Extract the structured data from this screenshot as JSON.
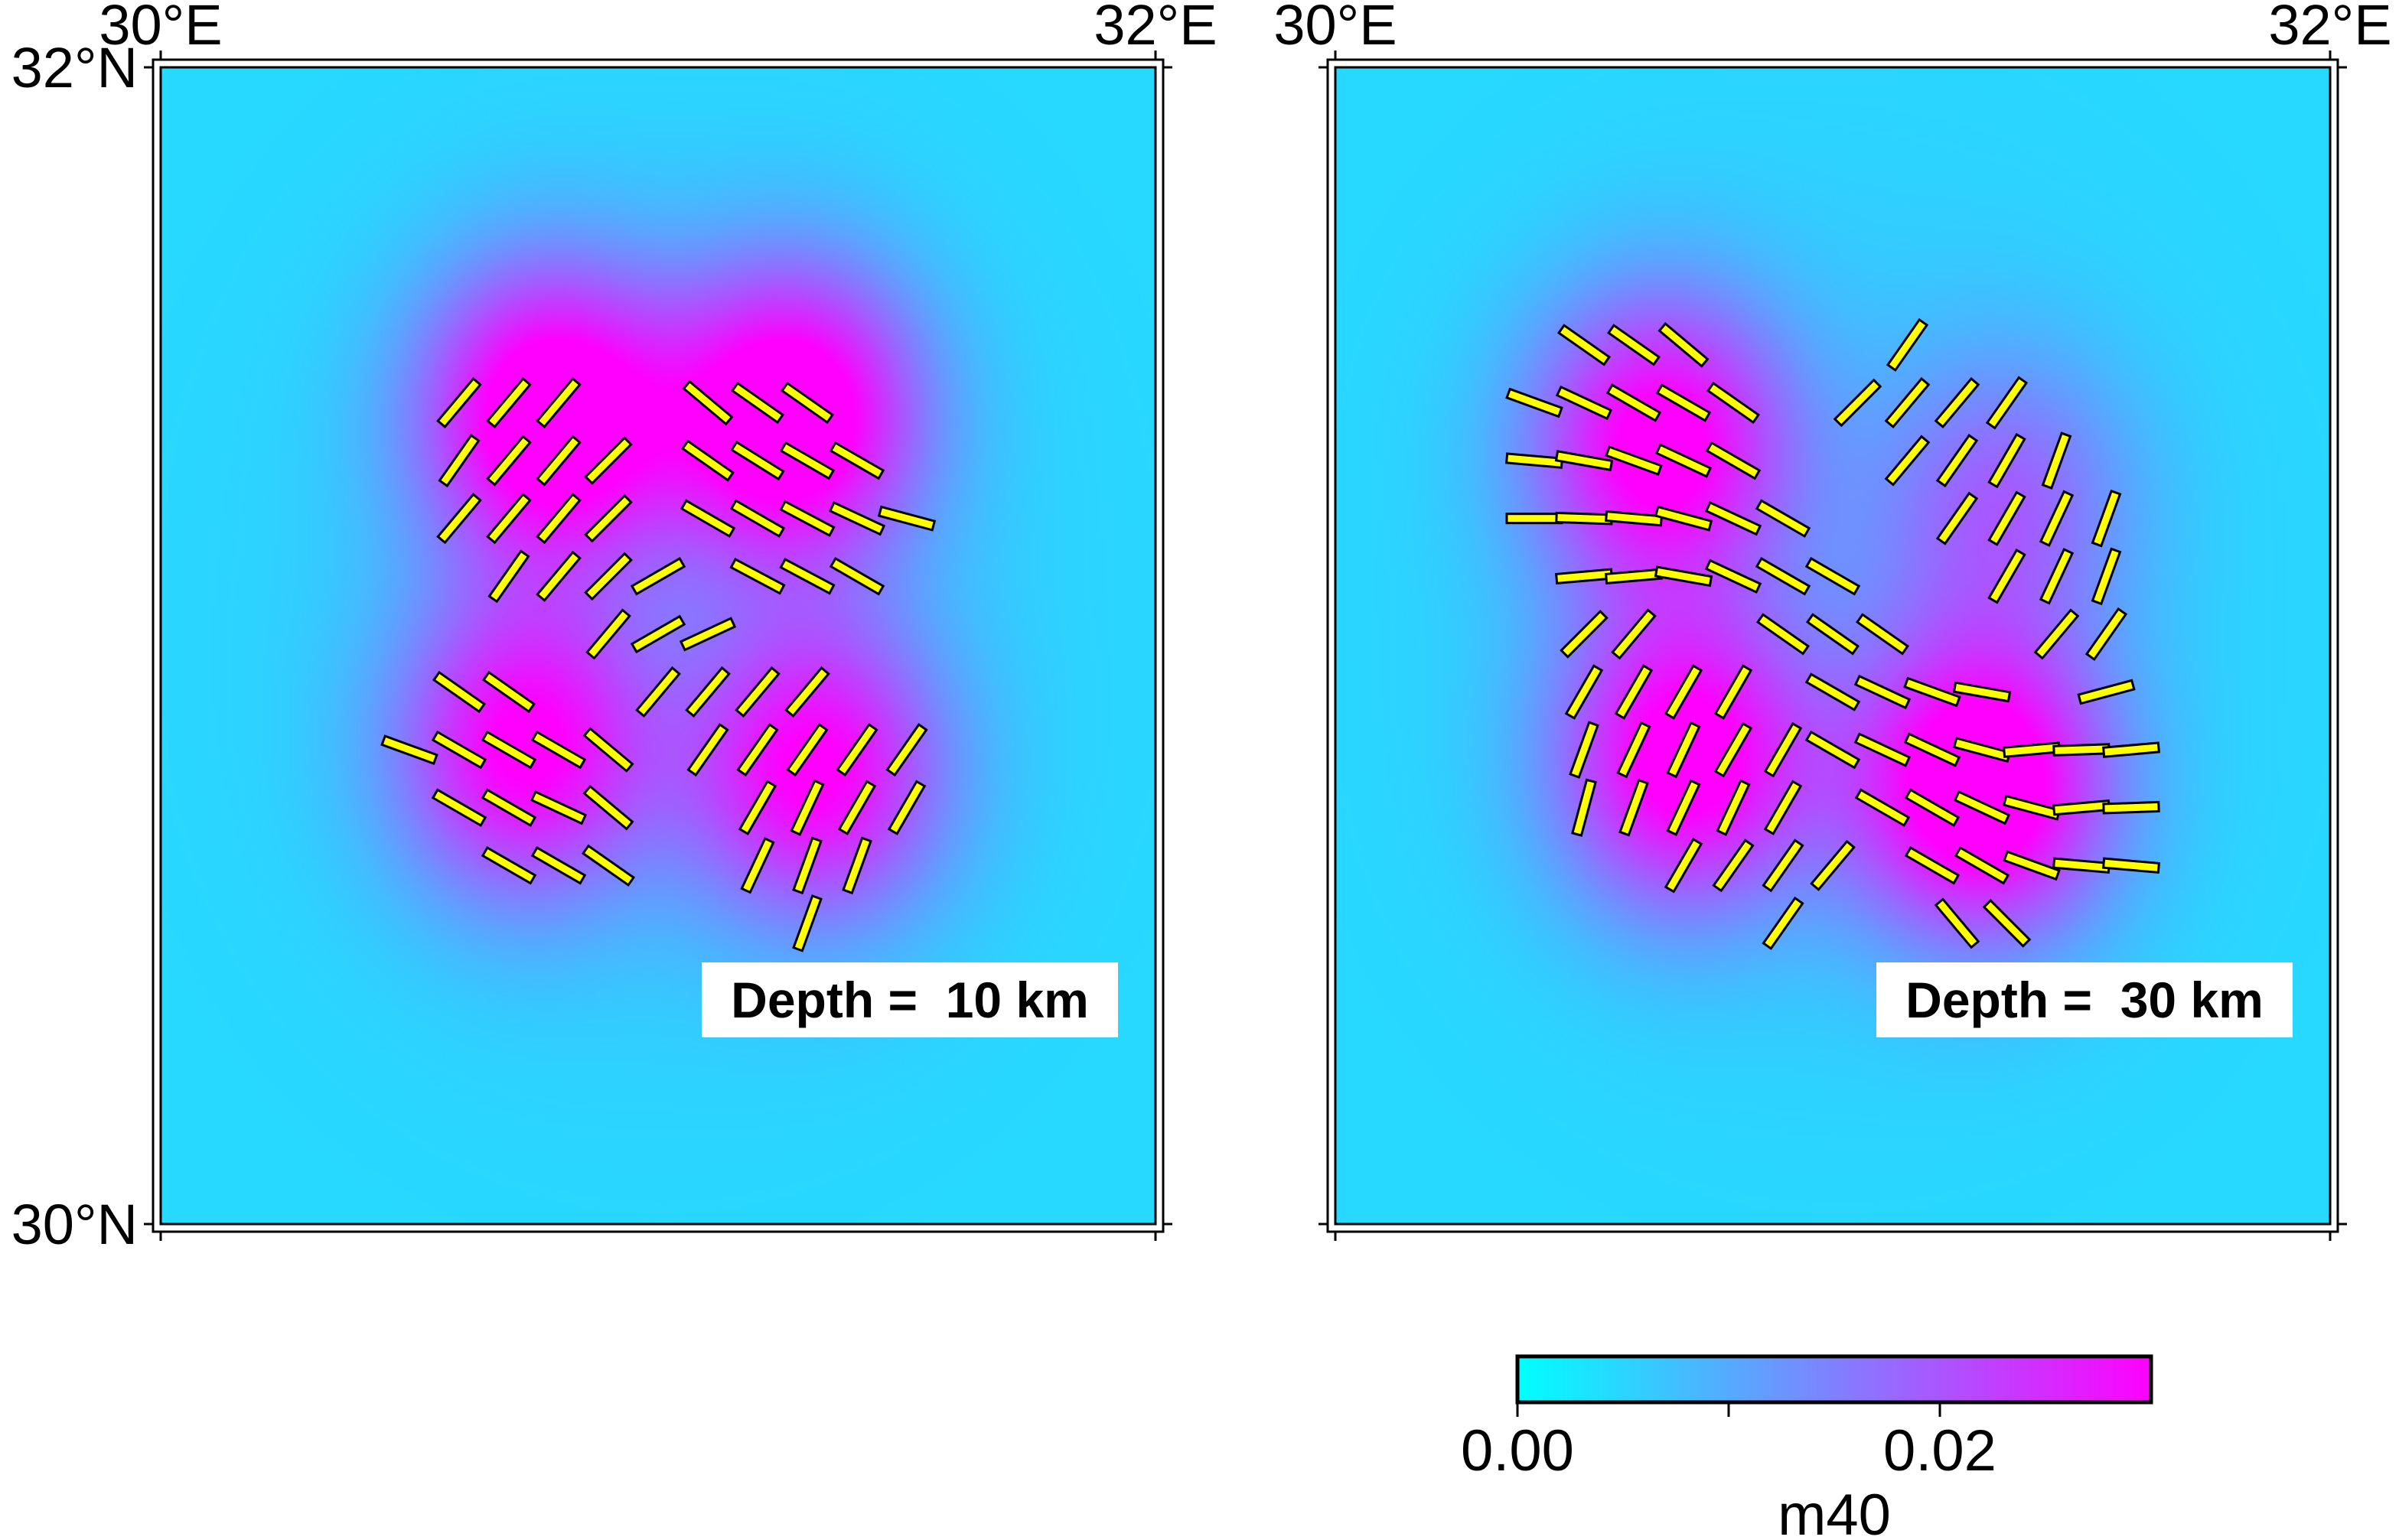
{
  "colors": {
    "low": "#00ffff",
    "mid": "#8080ff",
    "high": "#ff00ff",
    "stick": "#ffff00",
    "outline": "#000000"
  },
  "colorbar": {
    "label": "m40",
    "tick_labels": [
      "0.00",
      "0.02"
    ],
    "ticks": [
      0,
      0.01,
      0.02
    ],
    "range": [
      0,
      0.03
    ]
  },
  "panels": [
    {
      "lon_labels": [
        "30°E",
        "32°E"
      ],
      "lat_labels": [
        "32°N",
        "30°N"
      ],
      "depth_label": "Depth =  10 km",
      "anomalies": [
        {
          "lon": 30.78,
          "lat": 31.4,
          "amp": 0.03
        },
        {
          "lon": 31.27,
          "lat": 31.4,
          "amp": 0.03
        },
        {
          "lon": 30.73,
          "lat": 30.82,
          "amp": 0.024
        },
        {
          "lon": 31.32,
          "lat": 30.78,
          "amp": 0.024
        }
      ],
      "sticks": [
        {
          "lon": 30.6,
          "lat": 31.42,
          "azimuth": 40
        },
        {
          "lon": 30.7,
          "lat": 31.42,
          "azimuth": 40
        },
        {
          "lon": 30.8,
          "lat": 31.42,
          "azimuth": 40
        },
        {
          "lon": 30.6,
          "lat": 31.32,
          "azimuth": 35
        },
        {
          "lon": 30.7,
          "lat": 31.32,
          "azimuth": 40
        },
        {
          "lon": 30.8,
          "lat": 31.32,
          "azimuth": 40
        },
        {
          "lon": 30.9,
          "lat": 31.32,
          "azimuth": 45
        },
        {
          "lon": 30.6,
          "lat": 31.22,
          "azimuth": 40
        },
        {
          "lon": 30.7,
          "lat": 31.22,
          "azimuth": 40
        },
        {
          "lon": 30.8,
          "lat": 31.22,
          "azimuth": 40
        },
        {
          "lon": 30.9,
          "lat": 31.22,
          "azimuth": 45
        },
        {
          "lon": 30.7,
          "lat": 31.12,
          "azimuth": 35
        },
        {
          "lon": 30.8,
          "lat": 31.12,
          "azimuth": 40
        },
        {
          "lon": 30.9,
          "lat": 31.12,
          "azimuth": 45
        },
        {
          "lon": 31.0,
          "lat": 31.12,
          "azimuth": 60
        },
        {
          "lon": 31.1,
          "lat": 31.42,
          "azimuth": -50
        },
        {
          "lon": 31.2,
          "lat": 31.42,
          "azimuth": -55
        },
        {
          "lon": 31.3,
          "lat": 31.42,
          "azimuth": -55
        },
        {
          "lon": 31.1,
          "lat": 31.32,
          "azimuth": -55
        },
        {
          "lon": 31.2,
          "lat": 31.32,
          "azimuth": -58
        },
        {
          "lon": 31.3,
          "lat": 31.32,
          "azimuth": -60
        },
        {
          "lon": 31.4,
          "lat": 31.32,
          "azimuth": -60
        },
        {
          "lon": 31.1,
          "lat": 31.22,
          "azimuth": -60
        },
        {
          "lon": 31.2,
          "lat": 31.22,
          "azimuth": -60
        },
        {
          "lon": 31.3,
          "lat": 31.22,
          "azimuth": -62
        },
        {
          "lon": 31.4,
          "lat": 31.22,
          "azimuth": -65
        },
        {
          "lon": 31.5,
          "lat": 31.22,
          "azimuth": -75
        },
        {
          "lon": 31.2,
          "lat": 31.12,
          "azimuth": -62
        },
        {
          "lon": 31.3,
          "lat": 31.12,
          "azimuth": -62
        },
        {
          "lon": 31.4,
          "lat": 31.12,
          "azimuth": -60
        },
        {
          "lon": 30.9,
          "lat": 31.02,
          "azimuth": 40
        },
        {
          "lon": 31.0,
          "lat": 31.02,
          "azimuth": 60
        },
        {
          "lon": 31.1,
          "lat": 31.02,
          "azimuth": 65
        },
        {
          "lon": 30.6,
          "lat": 30.92,
          "azimuth": -55
        },
        {
          "lon": 30.7,
          "lat": 30.92,
          "azimuth": -55
        },
        {
          "lon": 31.0,
          "lat": 30.92,
          "azimuth": 40
        },
        {
          "lon": 31.1,
          "lat": 30.92,
          "azimuth": 40
        },
        {
          "lon": 31.2,
          "lat": 30.92,
          "azimuth": 40
        },
        {
          "lon": 31.3,
          "lat": 30.92,
          "azimuth": 40
        },
        {
          "lon": 30.5,
          "lat": 30.82,
          "azimuth": -70
        },
        {
          "lon": 30.6,
          "lat": 30.82,
          "azimuth": -60
        },
        {
          "lon": 30.7,
          "lat": 30.82,
          "azimuth": -60
        },
        {
          "lon": 30.8,
          "lat": 30.82,
          "azimuth": -60
        },
        {
          "lon": 30.9,
          "lat": 30.82,
          "azimuth": -50
        },
        {
          "lon": 31.1,
          "lat": 30.82,
          "azimuth": 35
        },
        {
          "lon": 31.2,
          "lat": 30.82,
          "azimuth": 35
        },
        {
          "lon": 31.3,
          "lat": 30.82,
          "azimuth": 35
        },
        {
          "lon": 31.4,
          "lat": 30.82,
          "azimuth": 35
        },
        {
          "lon": 31.5,
          "lat": 30.82,
          "azimuth": 35
        },
        {
          "lon": 30.6,
          "lat": 30.72,
          "azimuth": -60
        },
        {
          "lon": 30.7,
          "lat": 30.72,
          "azimuth": -60
        },
        {
          "lon": 30.8,
          "lat": 30.72,
          "azimuth": -65
        },
        {
          "lon": 30.9,
          "lat": 30.72,
          "azimuth": -50
        },
        {
          "lon": 31.2,
          "lat": 30.72,
          "azimuth": 30
        },
        {
          "lon": 31.3,
          "lat": 30.72,
          "azimuth": 25
        },
        {
          "lon": 31.4,
          "lat": 30.72,
          "azimuth": 30
        },
        {
          "lon": 31.5,
          "lat": 30.72,
          "azimuth": 30
        },
        {
          "lon": 30.7,
          "lat": 30.62,
          "azimuth": -60
        },
        {
          "lon": 30.8,
          "lat": 30.62,
          "azimuth": -60
        },
        {
          "lon": 30.9,
          "lat": 30.62,
          "azimuth": -55
        },
        {
          "lon": 31.2,
          "lat": 30.62,
          "azimuth": 25
        },
        {
          "lon": 31.3,
          "lat": 30.62,
          "azimuth": 20
        },
        {
          "lon": 31.4,
          "lat": 30.62,
          "azimuth": 20
        },
        {
          "lon": 31.3,
          "lat": 30.52,
          "azimuth": 20
        }
      ]
    },
    {
      "lon_labels": [
        "30°E",
        "32°E"
      ],
      "lat_labels": [
        "",
        ""
      ],
      "depth_label": "Depth =  30 km",
      "anomalies": [
        {
          "lon": 30.65,
          "lat": 31.35,
          "amp": 0.026
        },
        {
          "lon": 30.7,
          "lat": 30.8,
          "amp": 0.026
        },
        {
          "lon": 31.3,
          "lat": 30.75,
          "amp": 0.03
        },
        {
          "lon": 31.35,
          "lat": 31.25,
          "amp": 0.012
        }
      ],
      "sticks": [
        {
          "lon": 30.5,
          "lat": 31.52,
          "azimuth": -55
        },
        {
          "lon": 30.6,
          "lat": 31.52,
          "azimuth": -55
        },
        {
          "lon": 30.7,
          "lat": 31.52,
          "azimuth": -50
        },
        {
          "lon": 30.4,
          "lat": 31.42,
          "azimuth": -70
        },
        {
          "lon": 30.5,
          "lat": 31.42,
          "azimuth": -65
        },
        {
          "lon": 30.6,
          "lat": 31.42,
          "azimuth": -60
        },
        {
          "lon": 30.7,
          "lat": 31.42,
          "azimuth": -60
        },
        {
          "lon": 30.8,
          "lat": 31.42,
          "azimuth": -55
        },
        {
          "lon": 30.4,
          "lat": 31.32,
          "azimuth": -85
        },
        {
          "lon": 30.5,
          "lat": 31.32,
          "azimuth": -80
        },
        {
          "lon": 30.6,
          "lat": 31.32,
          "azimuth": -70
        },
        {
          "lon": 30.7,
          "lat": 31.32,
          "azimuth": -65
        },
        {
          "lon": 30.8,
          "lat": 31.32,
          "azimuth": -60
        },
        {
          "lon": 30.4,
          "lat": 31.22,
          "azimuth": 90
        },
        {
          "lon": 30.5,
          "lat": 31.22,
          "azimuth": -88
        },
        {
          "lon": 30.6,
          "lat": 31.22,
          "azimuth": -85
        },
        {
          "lon": 30.7,
          "lat": 31.22,
          "azimuth": -75
        },
        {
          "lon": 30.8,
          "lat": 31.22,
          "azimuth": -65
        },
        {
          "lon": 30.9,
          "lat": 31.22,
          "azimuth": -60
        },
        {
          "lon": 30.5,
          "lat": 31.12,
          "azimuth": 85
        },
        {
          "lon": 30.6,
          "lat": 31.12,
          "azimuth": 85
        },
        {
          "lon": 30.7,
          "lat": 31.12,
          "azimuth": -80
        },
        {
          "lon": 30.8,
          "lat": 31.12,
          "azimuth": -65
        },
        {
          "lon": 30.9,
          "lat": 31.12,
          "azimuth": -60
        },
        {
          "lon": 31.0,
          "lat": 31.12,
          "azimuth": -60
        },
        {
          "lon": 30.9,
          "lat": 31.02,
          "azimuth": -55
        },
        {
          "lon": 31.0,
          "lat": 31.02,
          "azimuth": -55
        },
        {
          "lon": 31.1,
          "lat": 31.02,
          "azimuth": -55
        },
        {
          "lon": 31.0,
          "lat": 30.92,
          "azimuth": -60
        },
        {
          "lon": 31.1,
          "lat": 30.92,
          "azimuth": -65
        },
        {
          "lon": 31.2,
          "lat": 30.92,
          "azimuth": -70
        },
        {
          "lon": 31.3,
          "lat": 30.92,
          "azimuth": -80
        },
        {
          "lon": 31.0,
          "lat": 30.82,
          "azimuth": -60
        },
        {
          "lon": 31.1,
          "lat": 30.82,
          "azimuth": -65
        },
        {
          "lon": 31.2,
          "lat": 30.82,
          "azimuth": -65
        },
        {
          "lon": 31.3,
          "lat": 30.82,
          "azimuth": -75
        },
        {
          "lon": 31.4,
          "lat": 30.82,
          "azimuth": 85
        },
        {
          "lon": 31.5,
          "lat": 30.82,
          "azimuth": 88
        },
        {
          "lon": 31.6,
          "lat": 30.82,
          "azimuth": 85
        },
        {
          "lon": 31.1,
          "lat": 30.72,
          "azimuth": -60
        },
        {
          "lon": 31.2,
          "lat": 30.72,
          "azimuth": -60
        },
        {
          "lon": 31.3,
          "lat": 30.72,
          "azimuth": -65
        },
        {
          "lon": 31.4,
          "lat": 30.72,
          "azimuth": -75
        },
        {
          "lon": 31.5,
          "lat": 30.72,
          "azimuth": 85
        },
        {
          "lon": 31.6,
          "lat": 30.72,
          "azimuth": 88
        },
        {
          "lon": 31.2,
          "lat": 30.62,
          "azimuth": -60
        },
        {
          "lon": 31.3,
          "lat": 30.62,
          "azimuth": -60
        },
        {
          "lon": 31.4,
          "lat": 30.62,
          "azimuth": -70
        },
        {
          "lon": 31.5,
          "lat": 30.62,
          "azimuth": -85
        },
        {
          "lon": 31.6,
          "lat": 30.62,
          "azimuth": 95
        },
        {
          "lon": 31.25,
          "lat": 30.52,
          "azimuth": -40
        },
        {
          "lon": 31.35,
          "lat": 30.52,
          "azimuth": -45
        },
        {
          "lon": 31.15,
          "lat": 31.52,
          "azimuth": 35
        },
        {
          "lon": 31.05,
          "lat": 31.42,
          "azimuth": 45
        },
        {
          "lon": 31.15,
          "lat": 31.42,
          "azimuth": 40
        },
        {
          "lon": 31.25,
          "lat": 31.42,
          "azimuth": 40
        },
        {
          "lon": 31.35,
          "lat": 31.42,
          "azimuth": 35
        },
        {
          "lon": 31.15,
          "lat": 31.32,
          "azimuth": 40
        },
        {
          "lon": 31.25,
          "lat": 31.32,
          "azimuth": 35
        },
        {
          "lon": 31.35,
          "lat": 31.32,
          "azimuth": 30
        },
        {
          "lon": 31.45,
          "lat": 31.32,
          "azimuth": 20
        },
        {
          "lon": 31.25,
          "lat": 31.22,
          "azimuth": 35
        },
        {
          "lon": 31.35,
          "lat": 31.22,
          "azimuth": 30
        },
        {
          "lon": 31.45,
          "lat": 31.22,
          "azimuth": 25
        },
        {
          "lon": 31.55,
          "lat": 31.22,
          "azimuth": 20
        },
        {
          "lon": 31.35,
          "lat": 31.12,
          "azimuth": 30
        },
        {
          "lon": 31.45,
          "lat": 31.12,
          "azimuth": 25
        },
        {
          "lon": 31.55,
          "lat": 31.12,
          "azimuth": 20
        },
        {
          "lon": 31.45,
          "lat": 31.02,
          "azimuth": 40
        },
        {
          "lon": 31.55,
          "lat": 31.02,
          "azimuth": 35
        },
        {
          "lon": 31.55,
          "lat": 30.92,
          "azimuth": 75
        },
        {
          "lon": 30.5,
          "lat": 31.02,
          "azimuth": 45
        },
        {
          "lon": 30.6,
          "lat": 31.02,
          "azimuth": 40
        },
        {
          "lon": 30.5,
          "lat": 30.92,
          "azimuth": 30
        },
        {
          "lon": 30.6,
          "lat": 30.92,
          "azimuth": 30
        },
        {
          "lon": 30.7,
          "lat": 30.92,
          "azimuth": 30
        },
        {
          "lon": 30.8,
          "lat": 30.92,
          "azimuth": 30
        },
        {
          "lon": 30.5,
          "lat": 30.82,
          "azimuth": 20
        },
        {
          "lon": 30.6,
          "lat": 30.82,
          "azimuth": 25
        },
        {
          "lon": 30.7,
          "lat": 30.82,
          "azimuth": 25
        },
        {
          "lon": 30.8,
          "lat": 30.82,
          "azimuth": 30
        },
        {
          "lon": 30.9,
          "lat": 30.82,
          "azimuth": 30
        },
        {
          "lon": 30.5,
          "lat": 30.72,
          "azimuth": 15
        },
        {
          "lon": 30.6,
          "lat": 30.72,
          "azimuth": 20
        },
        {
          "lon": 30.7,
          "lat": 30.72,
          "azimuth": 25
        },
        {
          "lon": 30.8,
          "lat": 30.72,
          "azimuth": 25
        },
        {
          "lon": 30.9,
          "lat": 30.72,
          "azimuth": 30
        },
        {
          "lon": 30.7,
          "lat": 30.62,
          "azimuth": 30
        },
        {
          "lon": 30.8,
          "lat": 30.62,
          "azimuth": 35
        },
        {
          "lon": 30.9,
          "lat": 30.62,
          "azimuth": 35
        },
        {
          "lon": 31.0,
          "lat": 30.62,
          "azimuth": 40
        },
        {
          "lon": 30.9,
          "lat": 30.52,
          "azimuth": 35
        }
      ]
    }
  ]
}
